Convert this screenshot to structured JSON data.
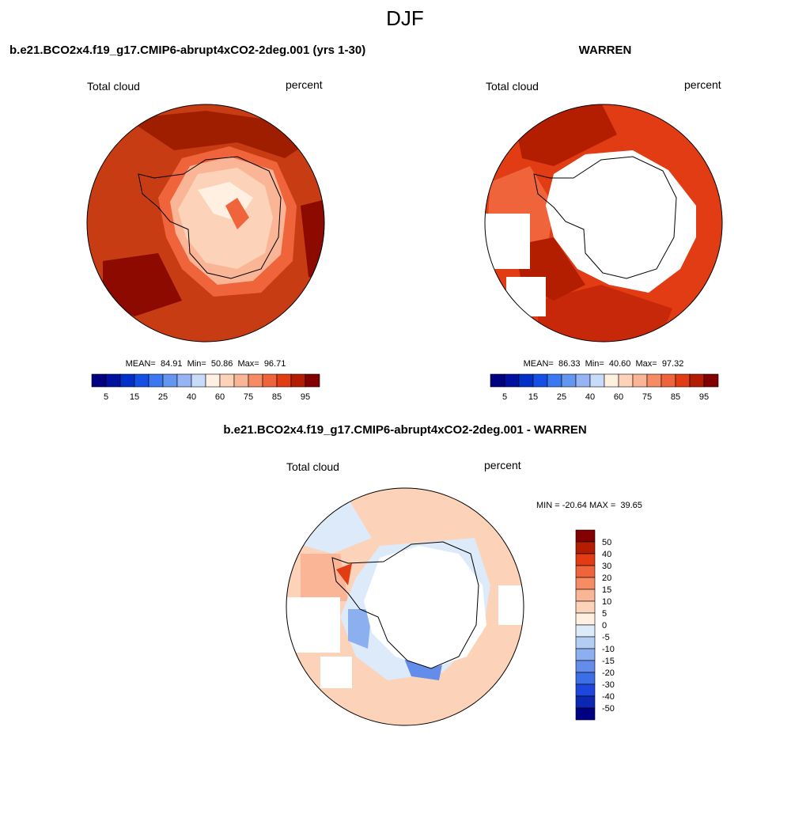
{
  "title": "DJF",
  "panels": [
    {
      "title": "b.e21.BCO2x4.f19_g17.CMIP6-abrupt4xCO2-2deg.001 (yrs 1-30)",
      "left_label": "Total cloud",
      "right_label": "percent",
      "stats": "MEAN=  84.91  Min=  50.86  Max=  96.71",
      "colorbar": {
        "labels": [
          5,
          15,
          25,
          40,
          60,
          75,
          85,
          95
        ],
        "colors": [
          "#000080",
          "#0010a0",
          "#0030c8",
          "#1450e6",
          "#3c78f0",
          "#6496f0",
          "#96b4f5",
          "#c8dcfa",
          "#fff0e1",
          "#fcd2b9",
          "#fab496",
          "#f58c64",
          "#f0643c",
          "#e13c14",
          "#b41e00",
          "#820000"
        ]
      }
    },
    {
      "title": "WARREN",
      "left_label": "Total cloud",
      "right_label": "percent",
      "stats": "MEAN=  86.33  Min=  40.60  Max=  97.32",
      "colorbar": {
        "labels": [
          5,
          15,
          25,
          40,
          60,
          75,
          85,
          95
        ],
        "colors": [
          "#000080",
          "#0010a0",
          "#0030c8",
          "#1450e6",
          "#3c78f0",
          "#6496f0",
          "#96b4f5",
          "#c8dcfa",
          "#fff0e1",
          "#fcd2b9",
          "#fab496",
          "#f58c64",
          "#f0643c",
          "#e13c14",
          "#b41e00",
          "#820000"
        ]
      }
    }
  ],
  "difference": {
    "title": "b.e21.BCO2x4.f19_g17.CMIP6-abrupt4xCO2-2deg.001 - WARREN",
    "left_label": "Total cloud",
    "right_label": "percent",
    "stats": "MIN = -20.64 MAX =  39.65",
    "colorbar": {
      "labels": [
        50,
        40,
        30,
        20,
        15,
        10,
        5,
        0,
        -5,
        -10,
        -15,
        -20,
        -30,
        -40,
        -50
      ],
      "colors": [
        "#820000",
        "#b41e00",
        "#e13c14",
        "#f0643c",
        "#f58c64",
        "#fab496",
        "#fcd2b9",
        "#fff0e1",
        "#dceafa",
        "#b4cdf5",
        "#8cafef",
        "#648cea",
        "#3c6ee6",
        "#1e46dc",
        "#0a28b4",
        "#000082"
      ]
    }
  }
}
